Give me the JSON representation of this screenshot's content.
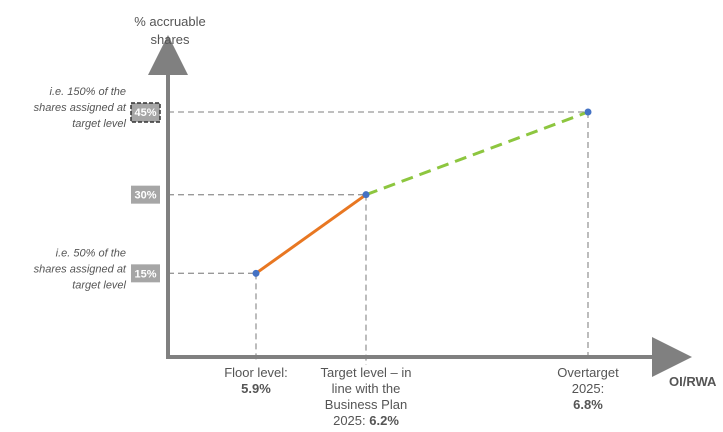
{
  "chart_data": {
    "type": "line",
    "ylabel_lines": [
      "% accruable",
      "shares"
    ],
    "xlabel": "OI/RWA",
    "points": [
      {
        "x": 5.9,
        "y": 15
      },
      {
        "x": 6.2,
        "y": 30
      },
      {
        "x": 6.8,
        "y": 45
      }
    ],
    "segments": [
      {
        "from": 0,
        "to": 1,
        "color": "#E87722",
        "style": "solid"
      },
      {
        "from": 1,
        "to": 2,
        "color": "#8DC63F",
        "style": "dashed"
      }
    ],
    "point_color": "#4472C4",
    "y_ticks": [
      {
        "value": 15,
        "label": "15%",
        "style": "filled"
      },
      {
        "value": 30,
        "label": "30%",
        "style": "filled"
      },
      {
        "value": 45,
        "label": "45%",
        "style": "dashed-outline"
      }
    ],
    "y_notes": [
      {
        "value": 45,
        "lines": [
          "i.e. 150% of the",
          "shares assigned at",
          "target level"
        ]
      },
      {
        "value": 15,
        "lines": [
          "i.e. 50% of the",
          "shares assigned at",
          "target level"
        ]
      }
    ],
    "x_labels": [
      {
        "x": 5.9,
        "lines": [
          "Floor level:"
        ],
        "bold": "5.9%",
        "bold_inline": false
      },
      {
        "x": 6.2,
        "lines": [
          "Target level – in",
          "line with the",
          "Business Plan",
          "2025:"
        ],
        "bold": "6.2%",
        "bold_inline": true
      },
      {
        "x": 6.8,
        "lines": [
          "Overtarget",
          "2025:"
        ],
        "bold": "6.8%",
        "bold_inline": false
      }
    ],
    "grid": false,
    "guide_lines": "dashed-grey"
  }
}
